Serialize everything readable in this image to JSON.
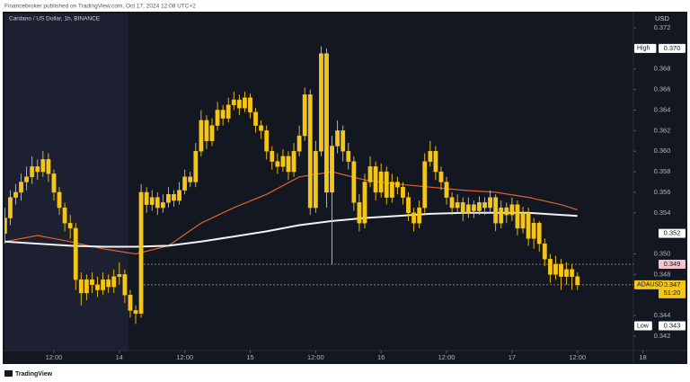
{
  "header": {
    "publisher": "Financebroker published on TradingView.com, Oct 17, 2024 12:08 UTC+2"
  },
  "footer": {
    "brand": "TradingView"
  },
  "chart_data": {
    "type": "candlestick",
    "title": "Cardano / US Dollar, 1h, BINANCE",
    "currency": "USD",
    "x": [
      3,
      4,
      5,
      6,
      7,
      8,
      9,
      10,
      11,
      12,
      13,
      14,
      15,
      16,
      17,
      18,
      19,
      20,
      21,
      22,
      23,
      24,
      25,
      26,
      27,
      28,
      29,
      30,
      31,
      32,
      33,
      34,
      35,
      36,
      37,
      38,
      39,
      40,
      41,
      42,
      43,
      44,
      45,
      46,
      47,
      48,
      49,
      50,
      51,
      52,
      53,
      54,
      55,
      56,
      57,
      58,
      59,
      60,
      61,
      62,
      63,
      64,
      65,
      66,
      67,
      68,
      69,
      70,
      71,
      72,
      73,
      74,
      75,
      76,
      77,
      78,
      79,
      80,
      81,
      82,
      83,
      84,
      85,
      86,
      87,
      88,
      89,
      90,
      91,
      92,
      93,
      94,
      95,
      96,
      97,
      98,
      99,
      100,
      101,
      102,
      103,
      104,
      105,
      106,
      107,
      108
    ],
    "series": [
      {
        "name": "ADAUSD",
        "color": "#f5c518",
        "open": [
          0.352,
          0.3535,
          0.3555,
          0.356,
          0.357,
          0.3575,
          0.3585,
          0.358,
          0.3592,
          0.3578,
          0.356,
          0.3545,
          0.353,
          0.3525,
          0.3475,
          0.3462,
          0.3475,
          0.347,
          0.3465,
          0.3475,
          0.3468,
          0.3478,
          0.348,
          0.346,
          0.3445,
          0.3442,
          0.356,
          0.3548,
          0.3555,
          0.3545,
          0.355,
          0.3558,
          0.3552,
          0.3562,
          0.3575,
          0.357,
          0.36,
          0.363,
          0.361,
          0.3625,
          0.364,
          0.3632,
          0.3645,
          0.365,
          0.3642,
          0.3652,
          0.3638,
          0.3625,
          0.362,
          0.36,
          0.359,
          0.3585,
          0.3595,
          0.358,
          0.36,
          0.3615,
          0.3655,
          0.3545,
          0.36,
          0.3695,
          0.356,
          0.3605,
          0.362,
          0.36,
          0.359,
          0.355,
          0.353,
          0.357,
          0.3585,
          0.356,
          0.358,
          0.3555,
          0.357,
          0.3565,
          0.3555,
          0.354,
          0.353,
          0.3545,
          0.359,
          0.36,
          0.358,
          0.357,
          0.3555,
          0.3545,
          0.355,
          0.354,
          0.3548,
          0.3542,
          0.355,
          0.3545,
          0.3555,
          0.353,
          0.3545,
          0.3538,
          0.3548,
          0.3525,
          0.354,
          0.3515,
          0.353,
          0.351,
          0.3495,
          0.348,
          0.349,
          0.3478,
          0.3485,
          0.3478
        ],
        "high": [
          0.3545,
          0.3562,
          0.3568,
          0.3578,
          0.3585,
          0.3595,
          0.3592,
          0.36,
          0.3598,
          0.3582,
          0.3565,
          0.355,
          0.3538,
          0.353,
          0.3482,
          0.348,
          0.3482,
          0.3478,
          0.3482,
          0.348,
          0.3485,
          0.3492,
          0.3485,
          0.3465,
          0.345,
          0.3568,
          0.3565,
          0.3562,
          0.356,
          0.3558,
          0.3565,
          0.3562,
          0.357,
          0.3582,
          0.358,
          0.3608,
          0.364,
          0.3635,
          0.3632,
          0.3648,
          0.3645,
          0.3652,
          0.3658,
          0.3655,
          0.3658,
          0.3656,
          0.3642,
          0.363,
          0.3625,
          0.3605,
          0.3598,
          0.3602,
          0.36,
          0.3608,
          0.3625,
          0.3662,
          0.366,
          0.361,
          0.3702,
          0.37,
          0.3615,
          0.363,
          0.3625,
          0.3608,
          0.3595,
          0.3558,
          0.3578,
          0.3595,
          0.359,
          0.3588,
          0.3585,
          0.3578,
          0.3575,
          0.357,
          0.356,
          0.3545,
          0.3552,
          0.3598,
          0.361,
          0.3605,
          0.3585,
          0.3575,
          0.356,
          0.3558,
          0.3555,
          0.3555,
          0.3552,
          0.3556,
          0.3555,
          0.3562,
          0.3558,
          0.3552,
          0.355,
          0.3555,
          0.3552,
          0.3546,
          0.3545,
          0.3535,
          0.3532,
          0.3515,
          0.35,
          0.3498,
          0.3495,
          0.3492,
          0.349,
          0.3482
        ],
        "low": [
          0.351,
          0.3528,
          0.3548,
          0.3552,
          0.3562,
          0.3568,
          0.3572,
          0.3575,
          0.357,
          0.3552,
          0.3538,
          0.3522,
          0.3515,
          0.3465,
          0.345,
          0.3455,
          0.3462,
          0.3458,
          0.346,
          0.3462,
          0.3462,
          0.347,
          0.3452,
          0.3438,
          0.3432,
          0.3438,
          0.354,
          0.3542,
          0.3538,
          0.354,
          0.3545,
          0.3546,
          0.3548,
          0.3558,
          0.3565,
          0.3565,
          0.3595,
          0.3602,
          0.3605,
          0.362,
          0.3625,
          0.3628,
          0.364,
          0.3635,
          0.3638,
          0.3632,
          0.3618,
          0.3612,
          0.3592,
          0.3582,
          0.3578,
          0.358,
          0.3572,
          0.3575,
          0.3595,
          0.361,
          0.3538,
          0.354,
          0.3595,
          0.3545,
          0.349,
          0.3598,
          0.359,
          0.3582,
          0.3542,
          0.3522,
          0.3525,
          0.3565,
          0.3552,
          0.3555,
          0.3548,
          0.355,
          0.3558,
          0.3548,
          0.3532,
          0.3522,
          0.3525,
          0.354,
          0.3585,
          0.3572,
          0.3562,
          0.3548,
          0.3538,
          0.354,
          0.3532,
          0.3535,
          0.3535,
          0.3538,
          0.3538,
          0.354,
          0.3522,
          0.3525,
          0.353,
          0.3532,
          0.3518,
          0.352,
          0.3508,
          0.3505,
          0.3502,
          0.3488,
          0.3472,
          0.3475,
          0.3465,
          0.347,
          0.3465,
          0.3465
        ],
        "close": [
          0.3535,
          0.3555,
          0.356,
          0.357,
          0.3575,
          0.3585,
          0.358,
          0.3592,
          0.3578,
          0.356,
          0.3545,
          0.353,
          0.3525,
          0.3475,
          0.3462,
          0.3475,
          0.347,
          0.3465,
          0.3475,
          0.3468,
          0.3478,
          0.348,
          0.346,
          0.3445,
          0.3442,
          0.356,
          0.3548,
          0.3555,
          0.3545,
          0.355,
          0.3558,
          0.3552,
          0.3562,
          0.3575,
          0.357,
          0.36,
          0.363,
          0.361,
          0.3625,
          0.364,
          0.3632,
          0.3645,
          0.365,
          0.3642,
          0.3652,
          0.3638,
          0.3625,
          0.362,
          0.36,
          0.359,
          0.3585,
          0.3595,
          0.358,
          0.36,
          0.3615,
          0.3655,
          0.3545,
          0.36,
          0.3695,
          0.356,
          0.3605,
          0.362,
          0.36,
          0.359,
          0.355,
          0.353,
          0.357,
          0.3585,
          0.356,
          0.358,
          0.3555,
          0.357,
          0.3565,
          0.3555,
          0.354,
          0.353,
          0.3545,
          0.359,
          0.36,
          0.358,
          0.357,
          0.3555,
          0.3545,
          0.355,
          0.354,
          0.3548,
          0.3542,
          0.355,
          0.3545,
          0.3555,
          0.353,
          0.3545,
          0.3538,
          0.3548,
          0.3525,
          0.354,
          0.3515,
          0.353,
          0.351,
          0.3495,
          0.348,
          0.349,
          0.3478,
          0.3485,
          0.3478,
          0.347
        ]
      }
    ],
    "lines": [
      {
        "color": "#e0622a",
        "x": [
          3,
          9,
          15,
          21,
          27,
          33,
          39,
          45,
          51,
          57,
          63,
          69,
          75,
          81,
          87,
          93,
          99,
          105,
          108
        ],
        "values": [
          0.3512,
          0.3518,
          0.3512,
          0.3505,
          0.35,
          0.3508,
          0.353,
          0.3545,
          0.3558,
          0.3575,
          0.358,
          0.3572,
          0.3568,
          0.3565,
          0.3562,
          0.356,
          0.3555,
          0.3548,
          0.3543
        ]
      },
      {
        "color": "#f2f2f2",
        "x": [
          3,
          9,
          15,
          21,
          27,
          33,
          39,
          45,
          51,
          57,
          63,
          69,
          75,
          81,
          87,
          93,
          99,
          105,
          108
        ],
        "values": [
          0.3512,
          0.351,
          0.3508,
          0.3507,
          0.3507,
          0.3508,
          0.3512,
          0.3517,
          0.3522,
          0.3528,
          0.3532,
          0.3535,
          0.3537,
          0.3539,
          0.354,
          0.354,
          0.354,
          0.3538,
          0.3537
        ]
      }
    ],
    "levels": [
      {
        "value": 0.349,
        "color": "#c98a9a"
      },
      {
        "value": 0.347,
        "color": "#8a8f9c"
      }
    ],
    "price_tags": [
      {
        "name": "High",
        "value": 0.37,
        "label": "0.370",
        "color": "#ffffff"
      },
      {
        "value": 0.352,
        "label": "0.352",
        "color": "#ffffff"
      },
      {
        "value": 0.349,
        "label": "0.349",
        "color": "#f3c6cf"
      },
      {
        "name": "ADAUSD",
        "value": 0.347,
        "label": "0.347",
        "countdown": "51:20",
        "color": "#f5c518"
      },
      {
        "name": "Low",
        "value": 0.343,
        "label": "0.343",
        "color": "#ffffff"
      }
    ],
    "xlim": [
      2.5,
      120.5
    ],
    "xticks": [
      {
        "value": 12,
        "label": "12:00"
      },
      {
        "value": 24,
        "label": "14"
      },
      {
        "value": 36,
        "label": "12:00"
      },
      {
        "value": 48,
        "label": "15"
      },
      {
        "value": 60,
        "label": "12:00"
      },
      {
        "value": 72,
        "label": "16"
      },
      {
        "value": 84,
        "label": "12:00"
      },
      {
        "value": 96,
        "label": "17"
      },
      {
        "value": 108,
        "label": "12:00"
      },
      {
        "value": 120,
        "label": "18"
      }
    ],
    "ylim": [
      0.3406,
      0.3734
    ],
    "yticks": [
      {
        "value": 0.342,
        "label": "0.342"
      },
      {
        "value": 0.344,
        "label": "0.344"
      },
      {
        "value": 0.348,
        "label": "0.348"
      },
      {
        "value": 0.35,
        "label": "0.350"
      },
      {
        "value": 0.354,
        "label": "0.354"
      },
      {
        "value": 0.356,
        "label": "0.356"
      },
      {
        "value": 0.358,
        "label": "0.358"
      },
      {
        "value": 0.36,
        "label": "0.360"
      },
      {
        "value": 0.362,
        "label": "0.362"
      },
      {
        "value": 0.364,
        "label": "0.364"
      },
      {
        "value": 0.366,
        "label": "0.366"
      },
      {
        "value": 0.368,
        "label": "0.368"
      },
      {
        "value": 0.372,
        "label": "0.372"
      }
    ],
    "grid": false
  }
}
